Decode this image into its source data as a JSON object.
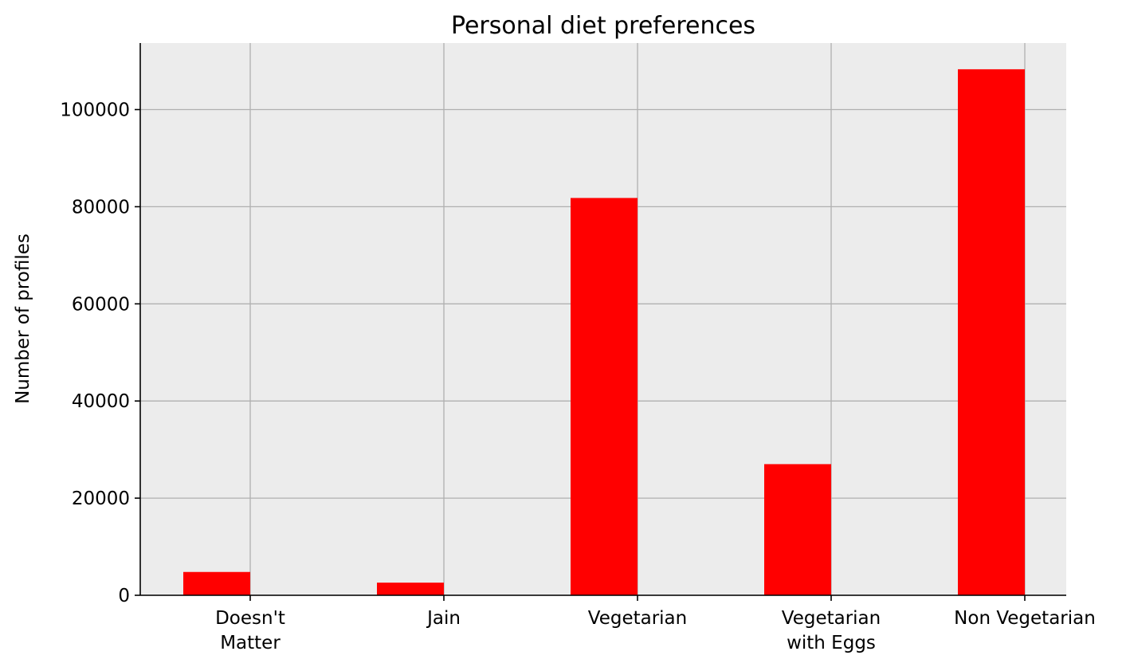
{
  "chart_data": {
    "type": "bar",
    "title": "Personal diet preferences",
    "xlabel": "",
    "ylabel": "Number of profiles",
    "categories": [
      [
        "Doesn't",
        "Matter"
      ],
      [
        "Jain"
      ],
      [
        "Vegetarian"
      ],
      [
        "Vegetarian",
        "with Eggs"
      ],
      [
        "Non Vegetarian"
      ]
    ],
    "values": [
      4800,
      2600,
      81800,
      27000,
      108300
    ],
    "ylim": [
      0,
      113700
    ],
    "yticks": [
      0,
      20000,
      40000,
      60000,
      80000,
      100000
    ],
    "ytick_labels": [
      "0",
      "20000",
      "40000",
      "60000",
      "80000",
      "100000"
    ],
    "grid": true,
    "legend": "none",
    "colors": {
      "bar": "#ff0000",
      "plot_background": "#ececec",
      "grid": "#b0b0b0",
      "axis": "#000000"
    }
  }
}
